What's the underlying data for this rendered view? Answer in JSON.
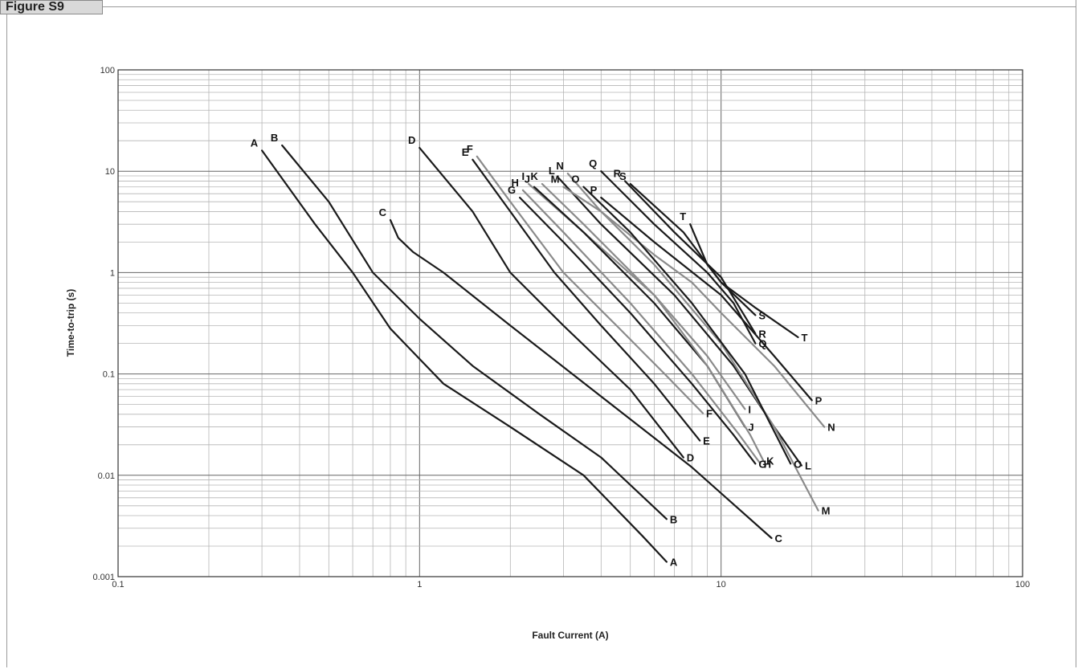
{
  "figure_label": "Figure S9",
  "chart_data": {
    "type": "line",
    "title": "",
    "xlabel": "Fault Current (A)",
    "ylabel": "Time-to-trip (s)",
    "x_scale": "log",
    "y_scale": "log",
    "xlim": [
      0.1,
      100
    ],
    "ylim": [
      0.001,
      100
    ],
    "grid": true,
    "x_ticks": [
      {
        "value": 0.1,
        "label": "0.1"
      },
      {
        "value": 1,
        "label": "1"
      },
      {
        "value": 10,
        "label": "10"
      },
      {
        "value": 100,
        "label": "100"
      }
    ],
    "y_ticks": [
      {
        "value": 100,
        "label": "100"
      },
      {
        "value": 10,
        "label": "10"
      },
      {
        "value": 1,
        "label": "1"
      },
      {
        "value": 0.1,
        "label": "0.1"
      },
      {
        "value": 0.01,
        "label": "0.01"
      },
      {
        "value": 0.001,
        "label": "0.001"
      }
    ],
    "series": [
      {
        "name": "A",
        "color": "#1a1a1a",
        "start_label": "A",
        "end_label": "A",
        "points": [
          [
            0.3,
            16
          ],
          [
            0.45,
            3.0
          ],
          [
            0.6,
            1.0
          ],
          [
            0.8,
            0.28
          ],
          [
            1.2,
            0.08
          ],
          [
            2.0,
            0.03
          ],
          [
            3.5,
            0.01
          ],
          [
            5.5,
            0.0025
          ],
          [
            6.6,
            0.0014
          ]
        ]
      },
      {
        "name": "B",
        "color": "#1a1a1a",
        "start_label": "B",
        "end_label": "B",
        "points": [
          [
            0.35,
            18
          ],
          [
            0.5,
            5.0
          ],
          [
            0.7,
            1.0
          ],
          [
            1.0,
            0.35
          ],
          [
            1.5,
            0.12
          ],
          [
            2.5,
            0.04
          ],
          [
            4.0,
            0.015
          ],
          [
            6.6,
            0.0037
          ]
        ]
      },
      {
        "name": "C",
        "color": "#1a1a1a",
        "start_label": "C",
        "end_label": "C",
        "points": [
          [
            0.8,
            3.3
          ],
          [
            0.85,
            2.2
          ],
          [
            0.95,
            1.6
          ],
          [
            1.2,
            1.0
          ],
          [
            2.0,
            0.3
          ],
          [
            4.0,
            0.06
          ],
          [
            8.0,
            0.012
          ],
          [
            14.7,
            0.0024
          ]
        ]
      },
      {
        "name": "D",
        "color": "#1a1a1a",
        "start_label": "D",
        "end_label": "D",
        "points": [
          [
            1.0,
            17
          ],
          [
            1.5,
            4.0
          ],
          [
            2.0,
            1.0
          ],
          [
            3.0,
            0.3
          ],
          [
            5.0,
            0.07
          ],
          [
            7.5,
            0.015
          ]
        ]
      },
      {
        "name": "E",
        "color": "#1a1a1a",
        "start_label": "E",
        "end_label": "E",
        "points": [
          [
            1.5,
            13
          ],
          [
            2.0,
            4.0
          ],
          [
            2.8,
            1.0
          ],
          [
            4.0,
            0.3
          ],
          [
            6.0,
            0.08
          ],
          [
            8.5,
            0.022
          ]
        ]
      },
      {
        "name": "F",
        "color": "#8a8a8a",
        "start_label": "F",
        "end_label": "F",
        "points": [
          [
            1.55,
            14
          ],
          [
            2.0,
            5.0
          ],
          [
            3.0,
            1.0
          ],
          [
            4.5,
            0.3
          ],
          [
            6.5,
            0.1
          ],
          [
            8.7,
            0.041
          ]
        ]
      },
      {
        "name": "G",
        "color": "#1a1a1a",
        "start_label": "G",
        "end_label": "G",
        "points": [
          [
            2.15,
            5.5
          ],
          [
            3.0,
            2.0
          ],
          [
            5.0,
            0.4
          ],
          [
            8.0,
            0.08
          ],
          [
            11.0,
            0.025
          ],
          [
            13.0,
            0.013
          ]
        ]
      },
      {
        "name": "H",
        "color": "#8a8a8a",
        "start_label": "H",
        "end_label": "H",
        "points": [
          [
            2.2,
            6.5
          ],
          [
            3.0,
            2.5
          ],
          [
            5.0,
            0.5
          ],
          [
            8.0,
            0.1
          ],
          [
            11.5,
            0.025
          ],
          [
            13.5,
            0.013
          ]
        ]
      },
      {
        "name": "I",
        "color": "#8a8a8a",
        "start_label": "I",
        "end_label": "I",
        "points": [
          [
            2.3,
            7.5
          ],
          [
            3.5,
            2.5
          ],
          [
            6.0,
            0.6
          ],
          [
            9.0,
            0.15
          ],
          [
            12.0,
            0.045
          ]
        ]
      },
      {
        "name": "J",
        "color": "#1a1a1a",
        "start_label": "J",
        "end_label": "J",
        "points": [
          [
            2.4,
            7.0
          ],
          [
            3.5,
            2.5
          ],
          [
            6.0,
            0.5
          ],
          [
            9.0,
            0.12
          ],
          [
            12.0,
            0.03
          ]
        ]
      },
      {
        "name": "K",
        "color": "#8a8a8a",
        "start_label": "K",
        "end_label": "K",
        "points": [
          [
            2.55,
            7.5
          ],
          [
            3.5,
            3.0
          ],
          [
            6.0,
            0.6
          ],
          [
            9.0,
            0.12
          ],
          [
            12.5,
            0.025
          ],
          [
            13.8,
            0.014
          ]
        ]
      },
      {
        "name": "L",
        "color": "#1a1a1a",
        "start_label": "L",
        "end_label": "L",
        "points": [
          [
            2.9,
            8.5
          ],
          [
            4.0,
            3.0
          ],
          [
            7.0,
            0.6
          ],
          [
            11.0,
            0.12
          ],
          [
            15.0,
            0.03
          ],
          [
            18.5,
            0.0125
          ]
        ]
      },
      {
        "name": "M",
        "color": "#8a8a8a",
        "start_label": "M",
        "end_label": "M",
        "points": [
          [
            3.0,
            7.0
          ],
          [
            4.0,
            4.0
          ],
          [
            6.0,
            1.2
          ],
          [
            10.0,
            0.2
          ],
          [
            15.0,
            0.03
          ],
          [
            21.0,
            0.0045
          ]
        ]
      },
      {
        "name": "N",
        "color": "#8a8a8a",
        "start_label": "N",
        "end_label": "N",
        "points": [
          [
            3.1,
            9.5
          ],
          [
            4.0,
            4.0
          ],
          [
            6.0,
            1.5
          ],
          [
            8.0,
            0.8
          ],
          [
            10.0,
            0.4
          ],
          [
            15.0,
            0.12
          ],
          [
            22.0,
            0.03
          ]
        ]
      },
      {
        "name": "O",
        "color": "#1a1a1a",
        "start_label": "O",
        "end_label": "O",
        "points": [
          [
            3.5,
            7.0
          ],
          [
            5.0,
            2.5
          ],
          [
            8.0,
            0.5
          ],
          [
            12.0,
            0.1
          ],
          [
            17.0,
            0.013
          ]
        ]
      },
      {
        "name": "P",
        "color": "#1a1a1a",
        "start_label": "P",
        "end_label": "P",
        "points": [
          [
            4.0,
            5.5
          ],
          [
            6.0,
            2.0
          ],
          [
            10.0,
            0.6
          ],
          [
            15.0,
            0.15
          ],
          [
            20.0,
            0.055
          ]
        ]
      },
      {
        "name": "Q",
        "color": "#1a1a1a",
        "start_label": "Q",
        "end_label": "Q",
        "points": [
          [
            4.0,
            10
          ],
          [
            6.0,
            3.0
          ],
          [
            9.0,
            1.0
          ],
          [
            11.0,
            0.5
          ],
          [
            13.0,
            0.2
          ]
        ]
      },
      {
        "name": "R",
        "color": "#1a1a1a",
        "start_label": "R",
        "end_label": "R",
        "points": [
          [
            4.8,
            8.0
          ],
          [
            7.0,
            2.5
          ],
          [
            10.0,
            0.9
          ],
          [
            13.0,
            0.25
          ]
        ]
      },
      {
        "name": "S",
        "color": "#1a1a1a",
        "start_label": "S",
        "end_label": "S",
        "points": [
          [
            5.0,
            7.5
          ],
          [
            7.5,
            2.5
          ],
          [
            10.0,
            0.8
          ],
          [
            13.0,
            0.38
          ]
        ]
      },
      {
        "name": "T",
        "color": "#1a1a1a",
        "start_label": "T",
        "end_label": "T",
        "points": [
          [
            7.9,
            3.0
          ],
          [
            9.0,
            1.2
          ],
          [
            10.0,
            0.8
          ],
          [
            13.0,
            0.45
          ],
          [
            18.0,
            0.23
          ]
        ]
      }
    ]
  }
}
